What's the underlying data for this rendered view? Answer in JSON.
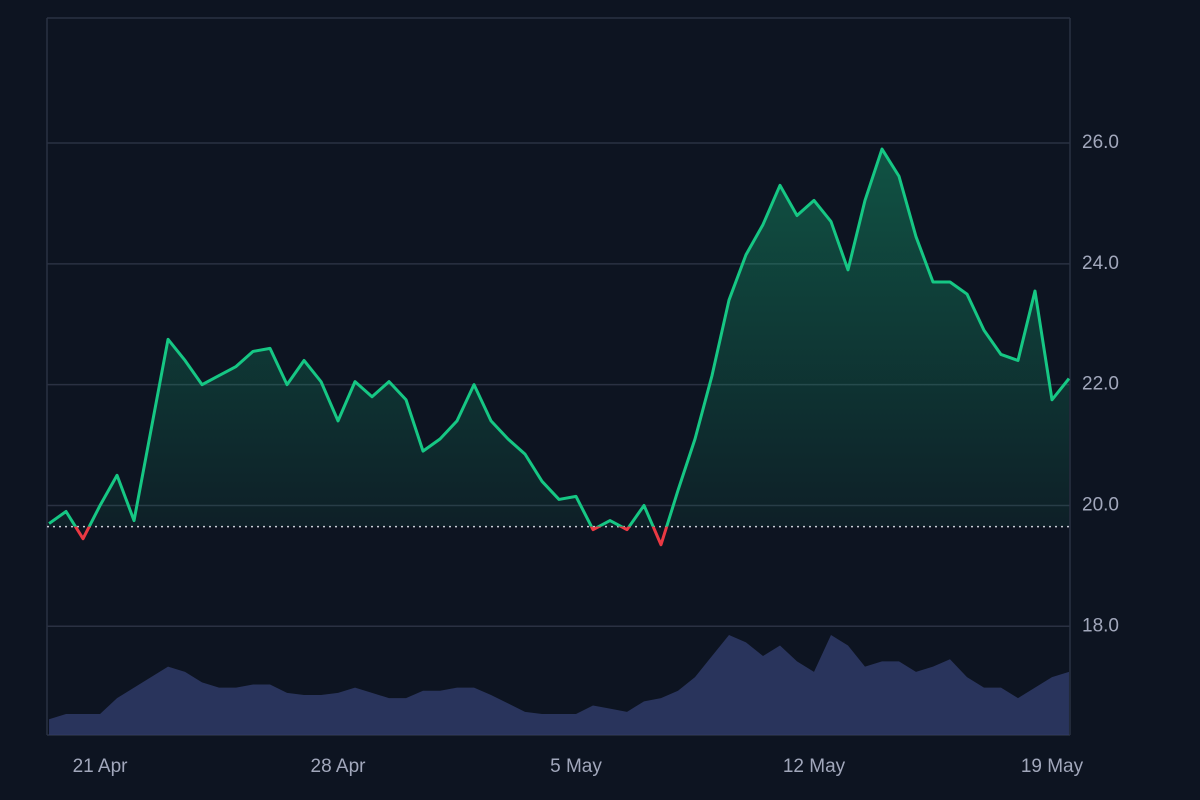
{
  "chart_data": {
    "type": "line",
    "x": [
      19.5,
      20,
      20.5,
      21,
      21.5,
      22,
      22.5,
      23,
      23.5,
      24,
      24.5,
      25,
      25.5,
      26,
      26.5,
      27,
      27.5,
      28,
      28.5,
      29,
      29.5,
      30,
      30.5,
      31,
      31.5,
      32,
      32.5,
      33,
      33.5,
      34,
      34.5,
      35,
      35.5,
      36,
      36.5,
      37,
      37.5,
      38,
      38.5,
      39,
      39.5,
      40,
      40.5,
      41,
      41.5,
      42,
      42.5,
      43,
      43.5,
      44,
      44.5,
      45,
      45.5,
      46,
      46.5,
      47,
      47.5,
      48,
      48.5,
      49,
      49.5
    ],
    "values": [
      19.7,
      19.9,
      19.45,
      20.0,
      20.5,
      19.75,
      21.25,
      22.75,
      22.4,
      22.0,
      22.15,
      22.3,
      22.55,
      22.6,
      22.0,
      22.4,
      22.05,
      21.4,
      22.05,
      21.8,
      22.05,
      21.75,
      20.9,
      21.1,
      21.4,
      22.0,
      21.4,
      21.1,
      20.85,
      20.4,
      20.1,
      20.15,
      19.6,
      19.75,
      19.6,
      20.0,
      19.35,
      20.25,
      21.1,
      22.15,
      23.4,
      24.15,
      24.65,
      25.3,
      24.8,
      25.05,
      24.7,
      23.9,
      25.05,
      25.9,
      25.45,
      24.45,
      23.7,
      23.7,
      23.5,
      22.9,
      22.5,
      22.4,
      23.55,
      21.75,
      22.1
    ],
    "volume": [
      15,
      20,
      20,
      20,
      35,
      45,
      55,
      65,
      60,
      50,
      45,
      45,
      48,
      48,
      40,
      38,
      38,
      40,
      45,
      40,
      35,
      35,
      42,
      42,
      45,
      45,
      38,
      30,
      22,
      20,
      20,
      20,
      28,
      25,
      22,
      32,
      35,
      42,
      55,
      75,
      95,
      88,
      75,
      85,
      70,
      60,
      95,
      85,
      65,
      70,
      70,
      60,
      65,
      72,
      55,
      45,
      45,
      35,
      45,
      55,
      60
    ],
    "baseline": 19.65,
    "color_up": "#16c784",
    "color_down": "#ea3943",
    "volume_color": "#2f3a66",
    "xlim": [
      19.44,
      49.53
    ],
    "xticks": [
      {
        "value": 21,
        "label": "21 Apr"
      },
      {
        "value": 28,
        "label": "28 Apr"
      },
      {
        "value": 35,
        "label": "5 May"
      },
      {
        "value": 42,
        "label": "12 May"
      },
      {
        "value": 49,
        "label": "19 May"
      }
    ],
    "ylim": [
      16.2,
      28.07
    ],
    "yticks": [
      {
        "value": 18,
        "label": "18.0"
      },
      {
        "value": 20,
        "label": "20.0"
      },
      {
        "value": 22,
        "label": "22.0"
      },
      {
        "value": 24,
        "label": "24.0"
      },
      {
        "value": 26,
        "label": "26.0"
      }
    ],
    "grid": true
  }
}
